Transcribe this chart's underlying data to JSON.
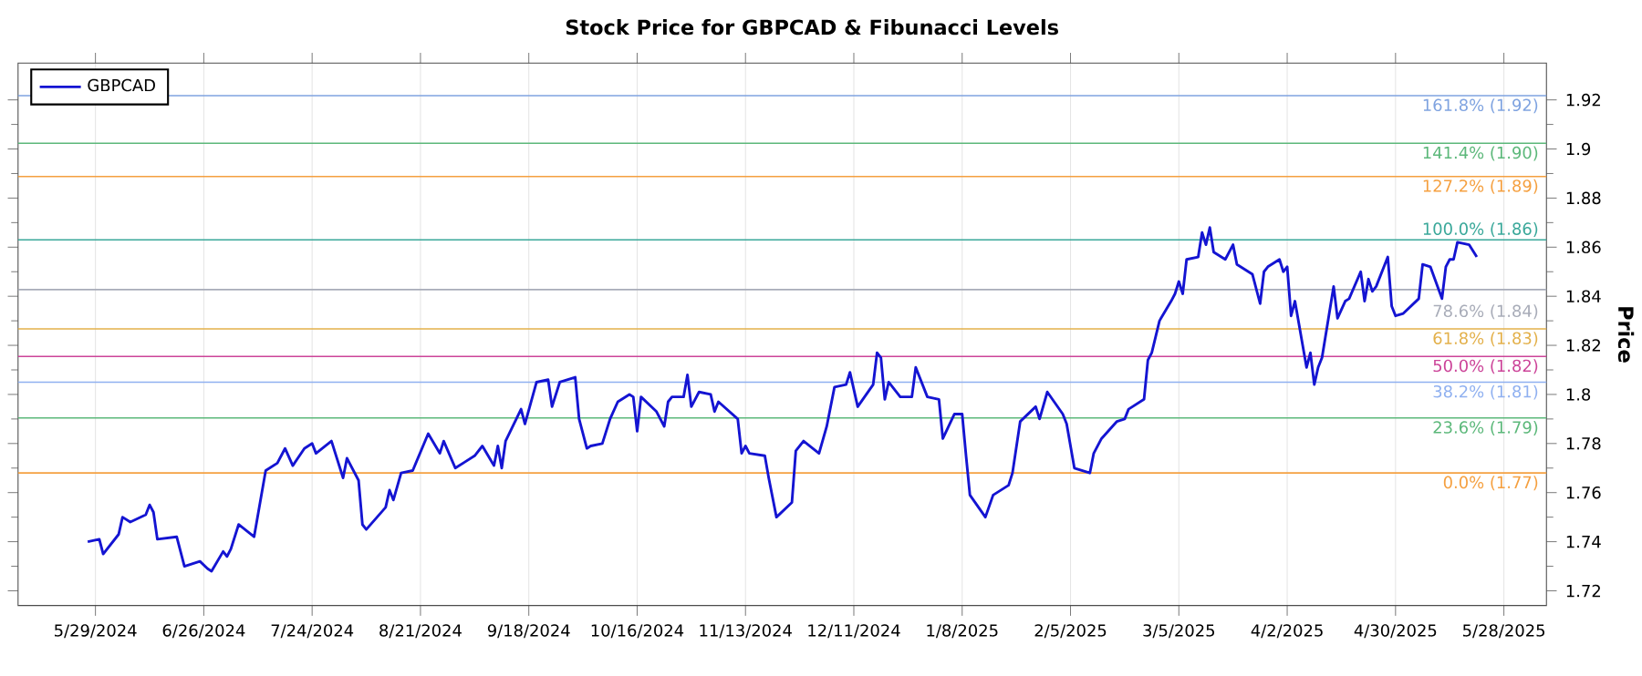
{
  "chart_data": {
    "type": "line",
    "title": "Stock Price for GBPCAD & Fibunacci Levels",
    "ylabel": "Price",
    "x": [
      "2024-05-27",
      "2024-05-30",
      "2024-05-31",
      "2024-06-04",
      "2024-06-05",
      "2024-06-07",
      "2024-06-11",
      "2024-06-12",
      "2024-06-13",
      "2024-06-14",
      "2024-06-19",
      "2024-06-21",
      "2024-06-25",
      "2024-06-27",
      "2024-06-28",
      "2024-07-01",
      "2024-07-02",
      "2024-07-03",
      "2024-07-05",
      "2024-07-09",
      "2024-07-12",
      "2024-07-15",
      "2024-07-17",
      "2024-07-19",
      "2024-07-22",
      "2024-07-24",
      "2024-07-25",
      "2024-07-29",
      "2024-08-01",
      "2024-08-02",
      "2024-08-05",
      "2024-08-06",
      "2024-08-07",
      "2024-08-12",
      "2024-08-13",
      "2024-08-14",
      "2024-08-16",
      "2024-08-19",
      "2024-08-23",
      "2024-08-26",
      "2024-08-27",
      "2024-08-30",
      "2024-09-04",
      "2024-09-06",
      "2024-09-09",
      "2024-09-10",
      "2024-09-11",
      "2024-09-12",
      "2024-09-16",
      "2024-09-17",
      "2024-09-20",
      "2024-09-23",
      "2024-09-24",
      "2024-09-26",
      "2024-09-30",
      "2024-10-01",
      "2024-10-03",
      "2024-10-04",
      "2024-10-07",
      "2024-10-09",
      "2024-10-11",
      "2024-10-14",
      "2024-10-15",
      "2024-10-16",
      "2024-10-17",
      "2024-10-21",
      "2024-10-23",
      "2024-10-24",
      "2024-10-25",
      "2024-10-28",
      "2024-10-29",
      "2024-10-30",
      "2024-11-01",
      "2024-11-04",
      "2024-11-05",
      "2024-11-06",
      "2024-11-11",
      "2024-11-12",
      "2024-11-13",
      "2024-11-14",
      "2024-11-18",
      "2024-11-19",
      "2024-11-21",
      "2024-11-25",
      "2024-11-26",
      "2024-11-28",
      "2024-12-02",
      "2024-12-04",
      "2024-12-06",
      "2024-12-09",
      "2024-12-10",
      "2024-12-12",
      "2024-12-16",
      "2024-12-17",
      "2024-12-18",
      "2024-12-19",
      "2024-12-20",
      "2024-12-23",
      "2024-12-26",
      "2024-12-27",
      "2024-12-30",
      "2025-01-02",
      "2025-01-03",
      "2025-01-06",
      "2025-01-08",
      "2025-01-09",
      "2025-01-10",
      "2025-01-14",
      "2025-01-16",
      "2025-01-20",
      "2025-01-21",
      "2025-01-23",
      "2025-01-27",
      "2025-01-28",
      "2025-01-30",
      "2025-02-03",
      "2025-02-04",
      "2025-02-06",
      "2025-02-10",
      "2025-02-11",
      "2025-02-13",
      "2025-02-17",
      "2025-02-19",
      "2025-02-20",
      "2025-02-24",
      "2025-02-25",
      "2025-02-26",
      "2025-02-28",
      "2025-03-03",
      "2025-03-04",
      "2025-03-05",
      "2025-03-06",
      "2025-03-07",
      "2025-03-10",
      "2025-03-11",
      "2025-03-12",
      "2025-03-13",
      "2025-03-14",
      "2025-03-17",
      "2025-03-19",
      "2025-03-20",
      "2025-03-24",
      "2025-03-26",
      "2025-03-27",
      "2025-03-28",
      "2025-03-31",
      "2025-04-01",
      "2025-04-02",
      "2025-04-03",
      "2025-04-04",
      "2025-04-07",
      "2025-04-08",
      "2025-04-09",
      "2025-04-10",
      "2025-04-11",
      "2025-04-14",
      "2025-04-15",
      "2025-04-17",
      "2025-04-18",
      "2025-04-21",
      "2025-04-22",
      "2025-04-23",
      "2025-04-24",
      "2025-04-25",
      "2025-04-28",
      "2025-04-29",
      "2025-04-30",
      "2025-05-02",
      "2025-05-06",
      "2025-05-07",
      "2025-05-09",
      "2025-05-12",
      "2025-05-13",
      "2025-05-14",
      "2025-05-15",
      "2025-05-16",
      "2025-05-19",
      "2025-05-21"
    ],
    "series": [
      {
        "name": "GBPCAD",
        "color": "#1414d2",
        "values": [
          1.74,
          1.741,
          1.735,
          1.743,
          1.75,
          1.748,
          1.751,
          1.755,
          1.752,
          1.741,
          1.742,
          1.73,
          1.732,
          1.729,
          1.728,
          1.736,
          1.734,
          1.737,
          1.747,
          1.742,
          1.769,
          1.772,
          1.778,
          1.771,
          1.778,
          1.78,
          1.776,
          1.781,
          1.766,
          1.774,
          1.765,
          1.747,
          1.745,
          1.754,
          1.761,
          1.757,
          1.768,
          1.769,
          1.784,
          1.776,
          1.781,
          1.77,
          1.775,
          1.779,
          1.771,
          1.779,
          1.77,
          1.781,
          1.794,
          1.788,
          1.805,
          1.806,
          1.795,
          1.805,
          1.807,
          1.79,
          1.778,
          1.779,
          1.78,
          1.79,
          1.797,
          1.8,
          1.799,
          1.785,
          1.799,
          1.793,
          1.787,
          1.797,
          1.799,
          1.799,
          1.808,
          1.795,
          1.801,
          1.8,
          1.793,
          1.797,
          1.79,
          1.776,
          1.779,
          1.776,
          1.775,
          1.766,
          1.75,
          1.756,
          1.777,
          1.781,
          1.776,
          1.787,
          1.803,
          1.804,
          1.809,
          1.795,
          1.804,
          1.817,
          1.815,
          1.798,
          1.805,
          1.799,
          1.799,
          1.811,
          1.799,
          1.798,
          1.782,
          1.792,
          1.792,
          1.775,
          1.759,
          1.75,
          1.759,
          1.763,
          1.768,
          1.789,
          1.795,
          1.79,
          1.801,
          1.792,
          1.788,
          1.77,
          1.768,
          1.776,
          1.782,
          1.789,
          1.79,
          1.794,
          1.798,
          1.814,
          1.817,
          1.83,
          1.838,
          1.841,
          1.846,
          1.841,
          1.855,
          1.856,
          1.866,
          1.861,
          1.868,
          1.858,
          1.855,
          1.861,
          1.853,
          1.849,
          1.837,
          1.85,
          1.852,
          1.855,
          1.85,
          1.852,
          1.832,
          1.838,
          1.811,
          1.817,
          1.804,
          1.811,
          1.815,
          1.844,
          1.831,
          1.838,
          1.839,
          1.85,
          1.838,
          1.847,
          1.842,
          1.844,
          1.856,
          1.836,
          1.832,
          1.833,
          1.839,
          1.853,
          1.852,
          1.839,
          1.852,
          1.855,
          1.855,
          1.862,
          1.861,
          1.856
        ]
      }
    ],
    "xlim": [
      "2024-05-09",
      "2025-06-08"
    ],
    "xticks": [
      {
        "value": "2024-05-29",
        "label": "5/29/2024"
      },
      {
        "value": "2024-06-26",
        "label": "6/26/2024"
      },
      {
        "value": "2024-07-24",
        "label": "7/24/2024"
      },
      {
        "value": "2024-08-21",
        "label": "8/21/2024"
      },
      {
        "value": "2024-09-18",
        "label": "9/18/2024"
      },
      {
        "value": "2024-10-16",
        "label": "10/16/2024"
      },
      {
        "value": "2024-11-13",
        "label": "11/13/2024"
      },
      {
        "value": "2024-12-11",
        "label": "12/11/2024"
      },
      {
        "value": "2025-01-08",
        "label": "1/8/2025"
      },
      {
        "value": "2025-02-05",
        "label": "2/5/2025"
      },
      {
        "value": "2025-03-05",
        "label": "3/5/2025"
      },
      {
        "value": "2025-04-02",
        "label": "4/2/2025"
      },
      {
        "value": "2025-04-30",
        "label": "4/30/2025"
      },
      {
        "value": "2025-05-28",
        "label": "5/28/2025"
      }
    ],
    "ylim": [
      1.714,
      1.935
    ],
    "yticks": [
      1.72,
      1.74,
      1.76,
      1.78,
      1.8,
      1.82,
      1.84,
      1.86,
      1.88,
      1.9,
      1.92
    ],
    "ref_lines": [
      {
        "axis": "y",
        "value": 1.9217,
        "label": "161.8% (1.92)",
        "color": "#7fa3e0"
      },
      {
        "axis": "y",
        "value": 1.9023,
        "label": "141.4% (1.90)",
        "color": "#5cb87a"
      },
      {
        "axis": "y",
        "value": 1.8888,
        "label": "127.2% (1.89)",
        "color": "#f5a040"
      },
      {
        "axis": "y",
        "value": 1.863,
        "label": "100.0% (1.86)",
        "color": "#3aa89a"
      },
      {
        "axis": "y",
        "value": 1.8427,
        "label": "78.6% (1.84)",
        "color": "#a8acb8"
      },
      {
        "axis": "y",
        "value": 1.8267,
        "label": "61.8% (1.83)",
        "color": "#e3b04a"
      },
      {
        "axis": "y",
        "value": 1.8155,
        "label": "50.0% (1.82)",
        "color": "#cc4499"
      },
      {
        "axis": "y",
        "value": 1.805,
        "label": "38.2% (1.81)",
        "color": "#8fb0f0"
      },
      {
        "axis": "y",
        "value": 1.7904,
        "label": "23.6% (1.79)",
        "color": "#5cb87a"
      },
      {
        "axis": "y",
        "value": 1.768,
        "label": "0.0% (1.77)",
        "color": "#f5a040"
      }
    ],
    "grid": "x",
    "legend": "top left"
  }
}
